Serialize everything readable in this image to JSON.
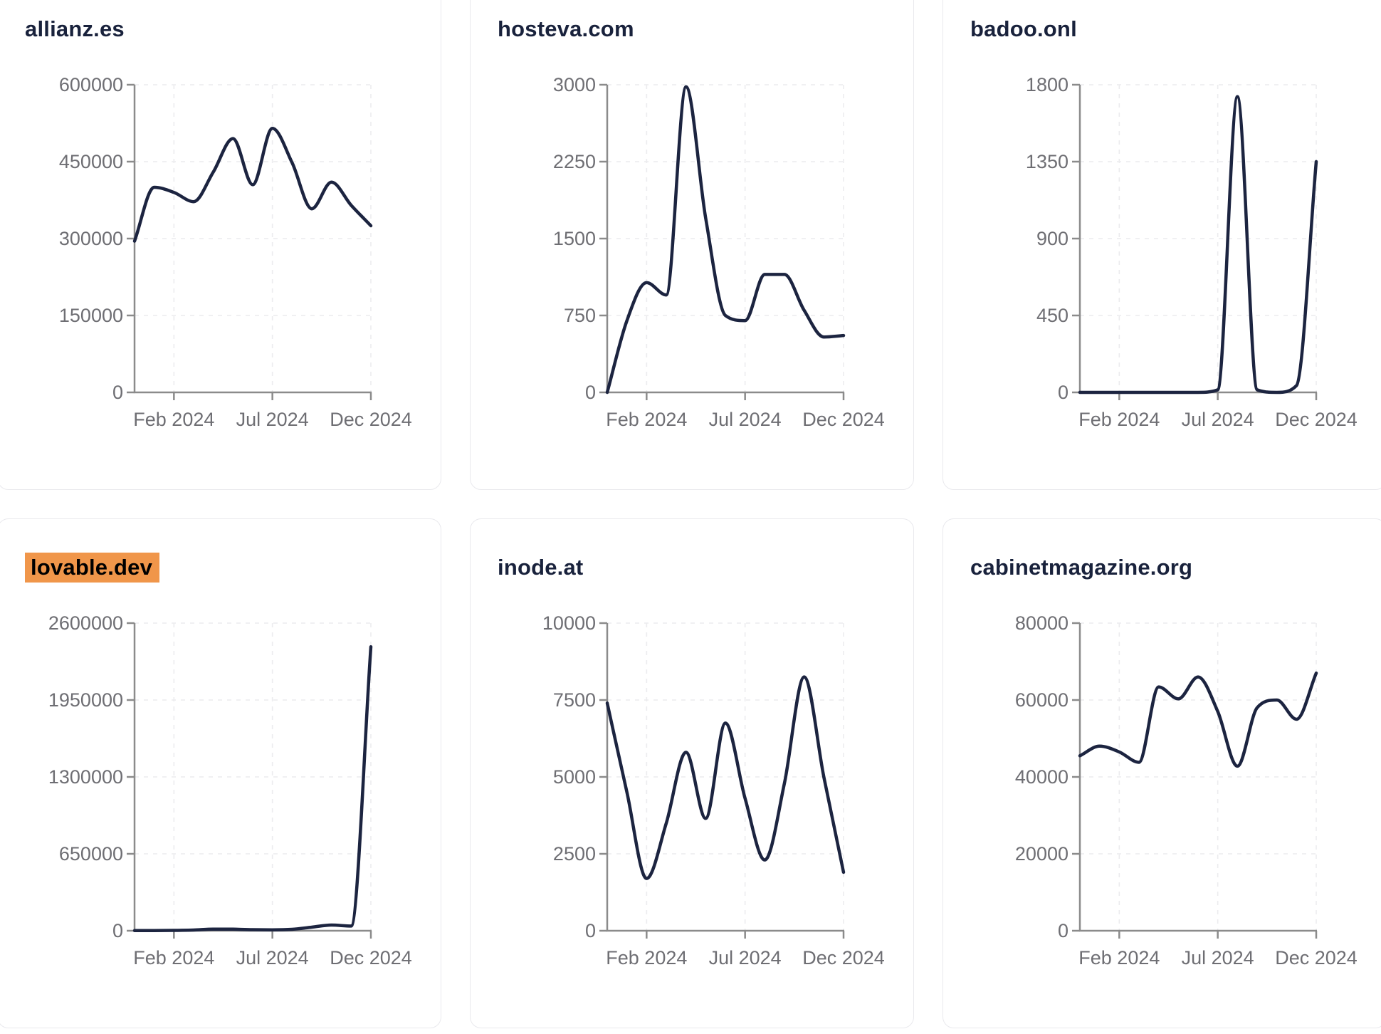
{
  "style": {
    "line_color": "#1c2440",
    "axis_color": "#8b8b8b",
    "grid_color": "#ececee",
    "tick_label_color": "#6e6e73",
    "title_color": "#19223c",
    "highlight_color": "#f0964a",
    "card_border_color": "#e9e9ed",
    "background": "#ffffff"
  },
  "x_months": [
    "Dec 2023",
    "Jan 2024",
    "Feb 2024",
    "Mar 2024",
    "Apr 2024",
    "May 2024",
    "Jun 2024",
    "Jul 2024",
    "Aug 2024",
    "Sep 2024",
    "Oct 2024",
    "Nov 2024",
    "Dec 2024"
  ],
  "chart_data": [
    {
      "type": "line",
      "title": "allianz.es",
      "title_highlighted": false,
      "x": [
        "Dec 2023",
        "Jan 2024",
        "Feb 2024",
        "Mar 2024",
        "Apr 2024",
        "May 2024",
        "Jun 2024",
        "Jul 2024",
        "Aug 2024",
        "Sep 2024",
        "Oct 2024",
        "Nov 2024",
        "Dec 2024"
      ],
      "values": [
        295000,
        400000,
        390000,
        372000,
        430000,
        495000,
        405000,
        515000,
        448000,
        358000,
        410000,
        365000,
        325000
      ],
      "yticks": [
        0,
        150000,
        300000,
        450000,
        600000
      ],
      "ylim": [
        0,
        600000
      ],
      "xticks": [
        {
          "label": "Feb 2024",
          "index": 2
        },
        {
          "label": "Jul 2024",
          "index": 7
        },
        {
          "label": "Dec 2024",
          "index": 12
        }
      ],
      "grid": true,
      "legend": "none"
    },
    {
      "type": "line",
      "title": "hosteva.com",
      "title_highlighted": false,
      "x": [
        "Dec 2023",
        "Jan 2024",
        "Feb 2024",
        "Mar 2024",
        "Apr 2024",
        "May 2024",
        "Jun 2024",
        "Jul 2024",
        "Aug 2024",
        "Sep 2024",
        "Oct 2024",
        "Nov 2024",
        "Dec 2024"
      ],
      "values": [
        0,
        700,
        1070,
        950,
        2980,
        1700,
        750,
        700,
        1150,
        1150,
        800,
        540,
        555
      ],
      "yticks": [
        0,
        750,
        1500,
        2250,
        3000
      ],
      "ylim": [
        0,
        3000
      ],
      "xticks": [
        {
          "label": "Feb 2024",
          "index": 2
        },
        {
          "label": "Jul 2024",
          "index": 7
        },
        {
          "label": "Dec 2024",
          "index": 12
        }
      ],
      "grid": true,
      "legend": "none"
    },
    {
      "type": "line",
      "title": "badoo.onl",
      "title_highlighted": false,
      "x": [
        "Dec 2023",
        "Jan 2024",
        "Feb 2024",
        "Mar 2024",
        "Apr 2024",
        "May 2024",
        "Jun 2024",
        "Jul 2024",
        "Aug 2024",
        "Sep 2024",
        "Oct 2024",
        "Nov 2024",
        "Dec 2024"
      ],
      "values": [
        0,
        0,
        0,
        0,
        0,
        0,
        0,
        15,
        1730,
        15,
        0,
        40,
        1350
      ],
      "yticks": [
        0,
        450,
        900,
        1350,
        1800
      ],
      "ylim": [
        0,
        1800
      ],
      "xticks": [
        {
          "label": "Feb 2024",
          "index": 2
        },
        {
          "label": "Jul 2024",
          "index": 7
        },
        {
          "label": "Dec 2024",
          "index": 12
        }
      ],
      "grid": true,
      "legend": "none"
    },
    {
      "type": "line",
      "title": "lovable.dev",
      "title_highlighted": true,
      "x": [
        "Dec 2023",
        "Jan 2024",
        "Feb 2024",
        "Mar 2024",
        "Apr 2024",
        "May 2024",
        "Jun 2024",
        "Jul 2024",
        "Aug 2024",
        "Sep 2024",
        "Oct 2024",
        "Nov 2024",
        "Dec 2024"
      ],
      "values": [
        1000,
        2000,
        3000,
        6000,
        14000,
        13000,
        9000,
        8000,
        12000,
        30000,
        48000,
        40000,
        2400000
      ],
      "yticks": [
        0,
        650000,
        1300000,
        1950000,
        2600000
      ],
      "ylim": [
        0,
        2600000
      ],
      "xticks": [
        {
          "label": "Feb 2024",
          "index": 2
        },
        {
          "label": "Jul 2024",
          "index": 7
        },
        {
          "label": "Dec 2024",
          "index": 12
        }
      ],
      "grid": true,
      "legend": "none"
    },
    {
      "type": "line",
      "title": "inode.at",
      "title_highlighted": false,
      "x": [
        "Dec 2023",
        "Jan 2024",
        "Feb 2024",
        "Mar 2024",
        "Apr 2024",
        "May 2024",
        "Jun 2024",
        "Jul 2024",
        "Aug 2024",
        "Sep 2024",
        "Oct 2024",
        "Nov 2024",
        "Dec 2024"
      ],
      "values": [
        7400,
        4500,
        1700,
        3500,
        5800,
        3650,
        6750,
        4300,
        2300,
        4800,
        8250,
        5000,
        1900
      ],
      "yticks": [
        0,
        2500,
        5000,
        7500,
        10000
      ],
      "ylim": [
        0,
        10000
      ],
      "xticks": [
        {
          "label": "Feb 2024",
          "index": 2
        },
        {
          "label": "Jul 2024",
          "index": 7
        },
        {
          "label": "Dec 2024",
          "index": 12
        }
      ],
      "grid": true,
      "legend": "none"
    },
    {
      "type": "line",
      "title": "cabinetmagazine.org",
      "title_highlighted": false,
      "x": [
        "Dec 2023",
        "Jan 2024",
        "Feb 2024",
        "Mar 2024",
        "Apr 2024",
        "May 2024",
        "Jun 2024",
        "Jul 2024",
        "Aug 2024",
        "Sep 2024",
        "Oct 2024",
        "Nov 2024",
        "Dec 2024"
      ],
      "values": [
        45500,
        48000,
        46500,
        43800,
        63400,
        60300,
        66000,
        57000,
        42800,
        58000,
        60000,
        55000,
        67000
      ],
      "yticks": [
        0,
        20000,
        40000,
        60000,
        80000
      ],
      "ylim": [
        0,
        80000
      ],
      "xticks": [
        {
          "label": "Feb 2024",
          "index": 2
        },
        {
          "label": "Jul 2024",
          "index": 7
        },
        {
          "label": "Dec 2024",
          "index": 12
        }
      ],
      "grid": true,
      "legend": "none"
    }
  ]
}
